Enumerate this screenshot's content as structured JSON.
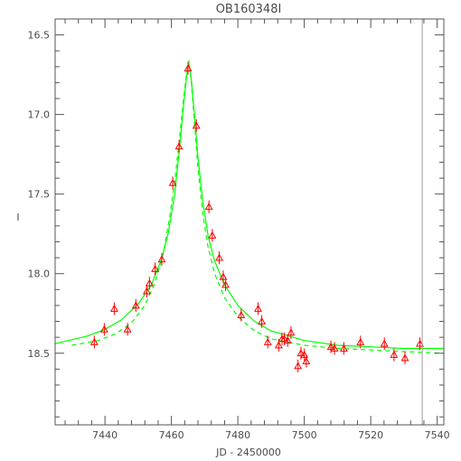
{
  "chart_data": {
    "type": "scatter",
    "title": "OB160348I",
    "xlabel": "JD - 2450000",
    "ylabel": "I",
    "xlim": [
      7425,
      7542
    ],
    "ylim": [
      18.95,
      16.4
    ],
    "y_axis_inverted": true,
    "grid": false,
    "xticks": [
      {
        "value": 7440,
        "label": "7440"
      },
      {
        "value": 7460,
        "label": "7460"
      },
      {
        "value": 7480,
        "label": "7480"
      },
      {
        "value": 7500,
        "label": "7500"
      },
      {
        "value": 7520,
        "label": "7520"
      },
      {
        "value": 7540,
        "label": "7540"
      }
    ],
    "yticks": [
      {
        "value": 16.5,
        "label": "16.5"
      },
      {
        "value": 17.0,
        "label": "17.0"
      },
      {
        "value": 17.5,
        "label": "17.5"
      },
      {
        "value": 18.0,
        "label": "18.0"
      },
      {
        "value": 18.5,
        "label": "18.5"
      }
    ],
    "vertical_line_x": 7535.5,
    "colors": {
      "points": "#ff0000",
      "model": "#00ff00",
      "frame": "#555555",
      "vline": "#999999",
      "text": "#4a4a4a"
    },
    "series": [
      {
        "marker": "triangle",
        "points": [
          {
            "x": 7436.8,
            "y": 18.43,
            "err": 0.04
          },
          {
            "x": 7439.8,
            "y": 18.35,
            "err": 0.04
          },
          {
            "x": 7442.8,
            "y": 18.22,
            "err": 0.04
          },
          {
            "x": 7446.8,
            "y": 18.35,
            "err": 0.04
          },
          {
            "x": 7449.3,
            "y": 18.2,
            "err": 0.04
          },
          {
            "x": 7452.6,
            "y": 18.11,
            "err": 0.04
          },
          {
            "x": 7453.4,
            "y": 18.06,
            "err": 0.04
          },
          {
            "x": 7455.1,
            "y": 17.97,
            "err": 0.04
          },
          {
            "x": 7457.1,
            "y": 17.91,
            "err": 0.04
          },
          {
            "x": 7460.4,
            "y": 17.43,
            "err": 0.04
          },
          {
            "x": 7462.3,
            "y": 17.2,
            "err": 0.04
          },
          {
            "x": 7465.0,
            "y": 16.71,
            "err": 0.04
          },
          {
            "x": 7467.5,
            "y": 17.07,
            "err": 0.04
          },
          {
            "x": 7471.3,
            "y": 17.58,
            "err": 0.04
          },
          {
            "x": 7472.3,
            "y": 17.76,
            "err": 0.04
          },
          {
            "x": 7474.4,
            "y": 17.9,
            "err": 0.04
          },
          {
            "x": 7475.6,
            "y": 18.02,
            "err": 0.04
          },
          {
            "x": 7476.3,
            "y": 18.07,
            "err": 0.04
          },
          {
            "x": 7481.0,
            "y": 18.26,
            "err": 0.04
          },
          {
            "x": 7486.1,
            "y": 18.22,
            "err": 0.04
          },
          {
            "x": 7487.2,
            "y": 18.3,
            "err": 0.04
          },
          {
            "x": 7489.0,
            "y": 18.43,
            "err": 0.04
          },
          {
            "x": 7492.3,
            "y": 18.45,
            "err": 0.04
          },
          {
            "x": 7493.3,
            "y": 18.41,
            "err": 0.04
          },
          {
            "x": 7494.0,
            "y": 18.41,
            "err": 0.04
          },
          {
            "x": 7495.0,
            "y": 18.42,
            "err": 0.04
          },
          {
            "x": 7496.0,
            "y": 18.37,
            "err": 0.04
          },
          {
            "x": 7498.1,
            "y": 18.58,
            "err": 0.04
          },
          {
            "x": 7499.0,
            "y": 18.5,
            "err": 0.04
          },
          {
            "x": 7500.0,
            "y": 18.51,
            "err": 0.04
          },
          {
            "x": 7500.6,
            "y": 18.55,
            "err": 0.04
          },
          {
            "x": 7508.0,
            "y": 18.46,
            "err": 0.04
          },
          {
            "x": 7509.1,
            "y": 18.47,
            "err": 0.04
          },
          {
            "x": 7511.9,
            "y": 18.47,
            "err": 0.04
          },
          {
            "x": 7516.9,
            "y": 18.43,
            "err": 0.04
          },
          {
            "x": 7524.1,
            "y": 18.44,
            "err": 0.04
          },
          {
            "x": 7527.0,
            "y": 18.51,
            "err": 0.04
          },
          {
            "x": 7530.3,
            "y": 18.53,
            "err": 0.04
          },
          {
            "x": 7534.8,
            "y": 18.44,
            "err": 0.04
          }
        ]
      }
    ],
    "models": [
      {
        "style": "solid",
        "x": [
          7425,
          7435,
          7440,
          7445,
          7450,
          7454,
          7457,
          7459,
          7461,
          7462.5,
          7463.5,
          7464.5,
          7465.2,
          7466,
          7467,
          7468,
          7469.5,
          7471,
          7473,
          7476,
          7480,
          7485,
          7490,
          7500,
          7510,
          7520,
          7530,
          7542
        ],
        "y": [
          18.44,
          18.39,
          18.35,
          18.29,
          18.19,
          18.07,
          17.91,
          17.75,
          17.5,
          17.2,
          16.98,
          16.77,
          16.67,
          16.78,
          17.02,
          17.27,
          17.55,
          17.76,
          17.92,
          18.07,
          18.2,
          18.3,
          18.36,
          18.42,
          18.45,
          18.46,
          18.47,
          18.47
        ]
      },
      {
        "style": "dashed",
        "x": [
          7430,
          7438,
          7443,
          7448,
          7452,
          7455,
          7457.5,
          7459.5,
          7461,
          7462.5,
          7463.5,
          7464.5,
          7465.3,
          7466,
          7467,
          7468,
          7469.5,
          7471,
          7473,
          7476,
          7480,
          7485,
          7490,
          7500,
          7510,
          7520,
          7530,
          7542
        ],
        "y": [
          18.45,
          18.42,
          18.38,
          18.31,
          18.2,
          18.06,
          17.88,
          17.64,
          17.42,
          17.14,
          16.93,
          16.75,
          16.66,
          16.8,
          17.07,
          17.34,
          17.63,
          17.83,
          18.0,
          18.15,
          18.27,
          18.36,
          18.41,
          18.45,
          18.47,
          18.48,
          18.49,
          18.5
        ]
      }
    ]
  }
}
